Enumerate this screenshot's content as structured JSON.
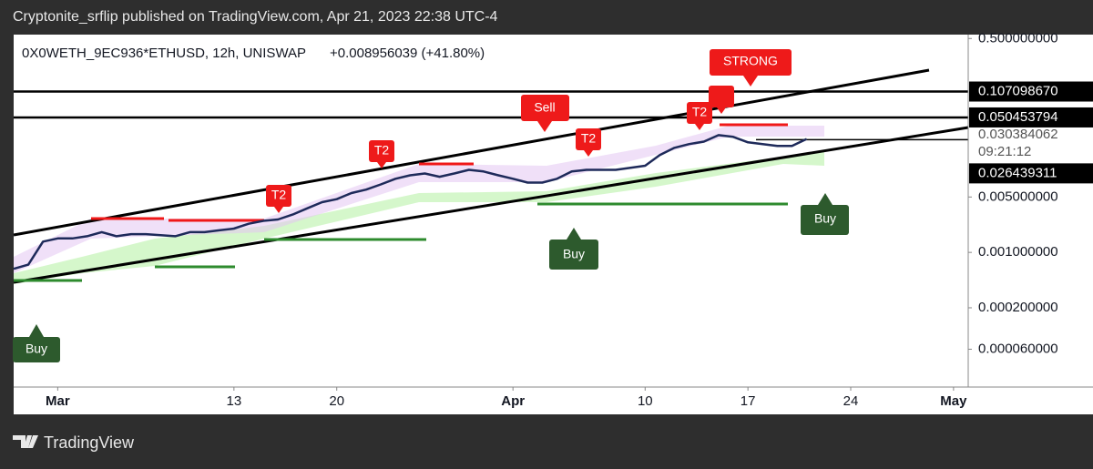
{
  "header": {
    "text": "Cryptonite_srflip published on TradingView.com, Apr 21, 2023 22:38 UTC-4"
  },
  "footer": {
    "brand": "TradingView"
  },
  "chart_data": {
    "type": "line",
    "title": "0X0WETH_9EC936*ETHUSD, 12h, UNISWAP",
    "change": "+0.008956039 (+41.80%)",
    "x": [
      "Feb 26",
      "Feb 27",
      "Feb 28",
      "Mar 1",
      "Mar 2",
      "Mar 3",
      "Mar 4",
      "Mar 5",
      "Mar 6",
      "Mar 7",
      "Mar 8",
      "Mar 9",
      "Mar 10",
      "Mar 11",
      "Mar 12",
      "Mar 13",
      "Mar 14",
      "Mar 15",
      "Mar 16",
      "Mar 17",
      "Mar 18",
      "Mar 19",
      "Mar 20",
      "Mar 21",
      "Mar 22",
      "Mar 23",
      "Mar 24",
      "Mar 25",
      "Mar 26",
      "Mar 27",
      "Mar 28",
      "Mar 29",
      "Mar 30",
      "Mar 31",
      "Apr 1",
      "Apr 2",
      "Apr 3",
      "Apr 4",
      "Apr 5",
      "Apr 6",
      "Apr 7",
      "Apr 8",
      "Apr 9",
      "Apr 10",
      "Apr 11",
      "Apr 12",
      "Apr 13",
      "Apr 14",
      "Apr 15",
      "Apr 16",
      "Apr 17",
      "Apr 18",
      "Apr 19",
      "Apr 20",
      "Apr 21"
    ],
    "values": [
      0.00062,
      0.0007,
      0.00137,
      0.0015,
      0.0015,
      0.0016,
      0.0018,
      0.0016,
      0.0017,
      0.0017,
      0.00165,
      0.0016,
      0.0018,
      0.0018,
      0.0019,
      0.002,
      0.0023,
      0.0025,
      0.0026,
      0.003,
      0.0036,
      0.0043,
      0.0047,
      0.0056,
      0.0062,
      0.0072,
      0.0085,
      0.0094,
      0.0099,
      0.009,
      0.0099,
      0.011,
      0.0105,
      0.0094,
      0.0085,
      0.0076,
      0.0076,
      0.0085,
      0.0105,
      0.011,
      0.011,
      0.011,
      0.0117,
      0.0124,
      0.0169,
      0.0209,
      0.0233,
      0.025,
      0.0302,
      0.0287,
      0.0245,
      0.0233,
      0.022,
      0.022,
      0.027
    ],
    "color": "#1e2a5a",
    "log_scale": true,
    "ylim": [
      2e-05,
      0.56
    ],
    "yticks": [
      {
        "value": 0.5,
        "label": "0.500000000"
      },
      {
        "value": 0.005,
        "label": "0.005000000"
      },
      {
        "value": 0.001,
        "label": "0.001000000"
      },
      {
        "value": 0.0002,
        "label": "0.000200000"
      },
      {
        "value": 6e-05,
        "label": "0.000060000"
      }
    ],
    "xlim": [
      "Feb 26",
      "May 2"
    ],
    "xticks": [
      {
        "value": "Mar 1",
        "label": "Mar"
      },
      {
        "value": "Mar 13",
        "label": "13"
      },
      {
        "value": "Mar 20",
        "label": "20"
      },
      {
        "value": "Apr 1",
        "label": "Apr"
      },
      {
        "value": "Apr 10",
        "label": "10"
      },
      {
        "value": "Apr 17",
        "label": "17"
      },
      {
        "value": "Apr 24",
        "label": "24"
      },
      {
        "value": "May 1",
        "label": "May"
      }
    ],
    "price_lines": [
      {
        "value": 0.10709867,
        "label": "0.107098670"
      },
      {
        "value": 0.050453794,
        "label": "0.050453794"
      }
    ],
    "last_price": {
      "value": 0.030384062,
      "label": "0.030384062"
    },
    "countdown": "09:21:12",
    "current_price": {
      "value": 0.026439311,
      "label": "0.026439311"
    },
    "signals": [
      "Buy",
      "Buy",
      "Buy",
      "Sell",
      "T2",
      "T2",
      "T2",
      "T2",
      "STRONG"
    ]
  }
}
